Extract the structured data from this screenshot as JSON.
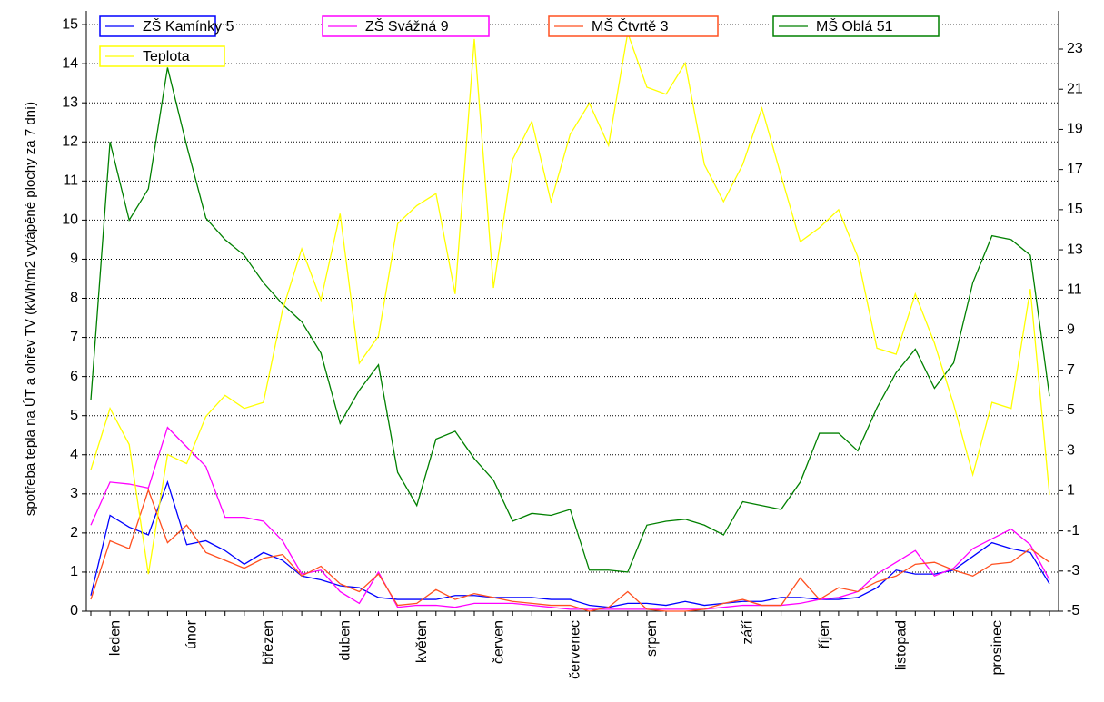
{
  "chart_data": {
    "type": "line",
    "y_axis_label": "spotřeba tepla na ÚT a ohřev TV (kWh/m2 vytápěné plochy za 7 dní)",
    "categories": [
      null,
      "leden",
      null,
      null,
      null,
      "únor",
      null,
      null,
      null,
      "březen",
      null,
      null,
      null,
      "duben",
      null,
      null,
      null,
      "květen",
      null,
      null,
      null,
      "červen",
      null,
      null,
      null,
      "červenec",
      null,
      null,
      null,
      "srpen",
      null,
      null,
      null,
      null,
      "září",
      null,
      null,
      null,
      "říjen",
      null,
      null,
      null,
      "listopad",
      null,
      null,
      null,
      null,
      "prosinec",
      null,
      null,
      null
    ],
    "ylim": [
      0,
      15.35
    ],
    "yticks": [
      0,
      1,
      2,
      3,
      4,
      5,
      6,
      7,
      8,
      9,
      10,
      11,
      12,
      13,
      14,
      15
    ],
    "y2lim": [
      -5,
      24.9
    ],
    "y2ticks": [
      -5,
      -3,
      -1,
      1,
      3,
      5,
      7,
      9,
      11,
      13,
      15,
      17,
      19,
      21,
      23
    ],
    "grid": true,
    "legend": "top",
    "series": [
      {
        "name": "ZŠ Kamínky 5",
        "color": "#0000ff",
        "values": [
          0.4,
          2.45,
          2.15,
          1.95,
          3.3,
          1.7,
          1.8,
          1.55,
          1.2,
          1.5,
          1.3,
          0.9,
          0.8,
          0.65,
          0.6,
          0.35,
          0.3,
          0.3,
          0.3,
          0.4,
          0.4,
          0.35,
          0.35,
          0.35,
          0.3,
          0.3,
          0.15,
          0.1,
          0.2,
          0.2,
          0.15,
          0.25,
          0.15,
          0.2,
          0.25,
          0.25,
          0.35,
          0.35,
          0.3,
          0.3,
          0.35,
          0.6,
          1.05,
          0.95,
          0.95,
          1.05,
          1.4,
          1.75,
          1.6,
          1.5,
          0.7
        ]
      },
      {
        "name": "ZŠ Svážná 9",
        "color": "#ff00ff",
        "values": [
          2.2,
          3.3,
          3.25,
          3.15,
          4.7,
          4.2,
          3.7,
          2.4,
          2.4,
          2.3,
          1.8,
          0.95,
          1.05,
          0.5,
          0.2,
          1.0,
          0.1,
          0.15,
          0.15,
          0.1,
          0.2,
          0.2,
          0.2,
          0.15,
          0.1,
          0.05,
          0.05,
          0.05,
          0.05,
          0.05,
          0.05,
          0.05,
          0.05,
          0.1,
          0.15,
          0.15,
          0.15,
          0.2,
          0.3,
          0.35,
          0.5,
          0.95,
          1.25,
          1.55,
          0.9,
          1.1,
          1.6,
          1.85,
          2.1,
          1.7,
          0.8
        ]
      },
      {
        "name": "MŠ Čtvrtě 3",
        "color": "#ff5020",
        "values": [
          0.3,
          1.8,
          1.6,
          3.1,
          1.75,
          2.2,
          1.5,
          1.3,
          1.1,
          1.35,
          1.45,
          0.9,
          1.15,
          0.7,
          0.5,
          0.95,
          0.15,
          0.2,
          0.55,
          0.3,
          0.45,
          0.35,
          0.25,
          0.2,
          0.15,
          0.15,
          0.0,
          0.1,
          0.5,
          0.05,
          0.0,
          0.0,
          0.05,
          0.2,
          0.3,
          0.15,
          0.15,
          0.85,
          0.3,
          0.6,
          0.5,
          0.75,
          0.9,
          1.2,
          1.25,
          1.05,
          0.9,
          1.2,
          1.25,
          1.6,
          1.25
        ]
      },
      {
        "name": "MŠ Oblá 51",
        "color": "#008000",
        "values": [
          5.4,
          12.0,
          10.0,
          10.8,
          13.9,
          11.9,
          10.05,
          9.5,
          9.1,
          8.4,
          7.85,
          7.4,
          6.6,
          4.8,
          5.65,
          6.3,
          3.55,
          2.7,
          4.4,
          4.6,
          3.9,
          3.35,
          2.3,
          2.5,
          2.45,
          2.6,
          1.05,
          1.05,
          1.0,
          2.2,
          2.3,
          2.35,
          2.2,
          1.95,
          2.8,
          2.7,
          2.6,
          3.3,
          4.55,
          4.55,
          4.1,
          5.2,
          6.1,
          6.7,
          5.7,
          6.35,
          8.4,
          9.6,
          9.5,
          9.1,
          5.5
        ]
      },
      {
        "name": "Teplota",
        "color": "#ffff00",
        "axis": "y2",
        "values": [
          2.05,
          5.1,
          3.3,
          -3.15,
          2.8,
          2.35,
          4.7,
          5.75,
          5.1,
          5.4,
          10.0,
          13.05,
          10.5,
          14.8,
          7.35,
          8.7,
          14.3,
          15.2,
          15.8,
          10.8,
          23.5,
          11.1,
          17.5,
          19.4,
          15.4,
          18.75,
          20.3,
          18.2,
          23.8,
          21.1,
          20.75,
          22.3,
          17.25,
          15.4,
          17.25,
          20.05,
          16.7,
          13.4,
          14.1,
          15.0,
          12.65,
          8.1,
          7.8,
          10.8,
          8.35,
          5.3,
          1.8,
          5.4,
          5.1,
          11.05,
          0.8
        ]
      }
    ]
  }
}
